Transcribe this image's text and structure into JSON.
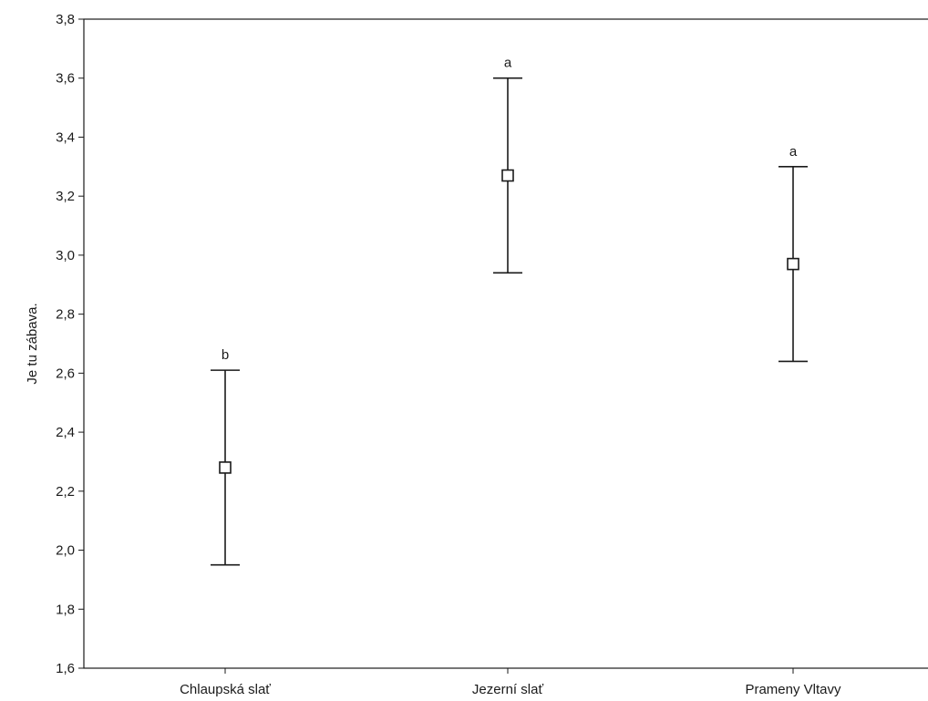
{
  "chart_data": {
    "type": "scatter",
    "title": "",
    "xlabel": "",
    "ylabel": "Je tu zábava.",
    "ylim": [
      1.6,
      3.8
    ],
    "yticks": [
      "1,6",
      "1,8",
      "2,0",
      "2,2",
      "2,4",
      "2,6",
      "2,8",
      "3,0",
      "3,2",
      "3,4",
      "3,6",
      "3,8"
    ],
    "ytick_values": [
      1.6,
      1.8,
      2.0,
      2.2,
      2.4,
      2.6,
      2.8,
      3.0,
      3.2,
      3.4,
      3.6,
      3.8
    ],
    "categories": [
      "Chlaupská slať",
      "Jezerní slať",
      "Prameny Vltavy"
    ],
    "means": [
      2.28,
      3.27,
      2.97
    ],
    "lower": [
      1.95,
      2.94,
      2.64
    ],
    "upper": [
      2.61,
      3.6,
      3.3
    ],
    "group_letters": [
      "b",
      "a",
      "a"
    ],
    "grid": false,
    "legend": "none",
    "line_color": "#1a1a1a",
    "marker_fill": "#ffffff"
  }
}
